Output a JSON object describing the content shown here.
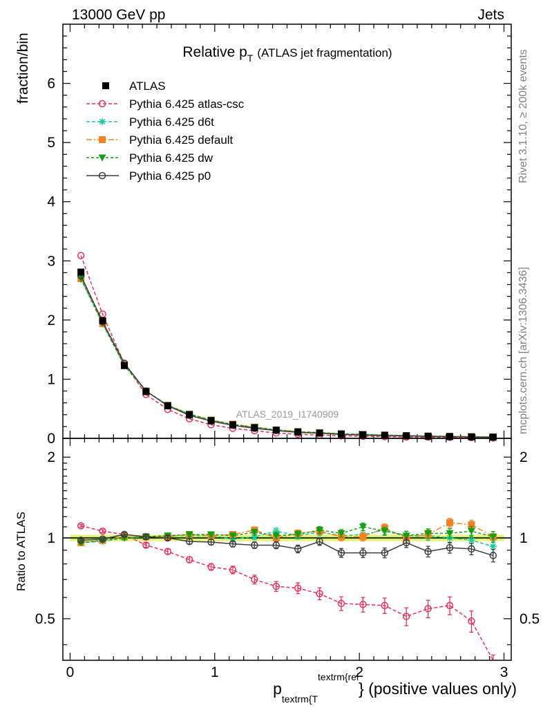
{
  "header": {
    "left_label": "13000 GeV pp",
    "right_label": "Jets"
  },
  "side_labels": {
    "rivet": "Rivet 3.1.10, ≥ 200k events",
    "mcplots": "mcplots.cern.ch [arXiv:1306.3436]"
  },
  "watermark": "ATLAS_2019_I1740909",
  "colors": {
    "ATLAS": "#000000",
    "Pythia 6.425 atlas-csc": "#e8305a",
    "Pythia 6.425 d6t": "#14c8a0",
    "Pythia 6.425 default": "#f58220",
    "Pythia 6.425 dw": "#10a010",
    "Pythia 6.425 p0": "#3c3c3c",
    "band_outer": "#f0f080",
    "band_inner": "#b8f070"
  },
  "chart_data": [
    {
      "type": "line",
      "panel": "main",
      "title": "Relative p",
      "title_sub": "T",
      "title_suffix": "(ATLAS jet fragmentation)",
      "ylabel": "fraction/bin",
      "xlim": [
        -0.05,
        3.05
      ],
      "ylim": [
        0,
        7.0
      ],
      "ytick_labels": [
        "0",
        "1",
        "2",
        "3",
        "4",
        "5",
        "6"
      ],
      "legend_position": "top-left",
      "x": [
        0.075,
        0.225,
        0.375,
        0.525,
        0.675,
        0.825,
        0.975,
        1.125,
        1.275,
        1.425,
        1.575,
        1.725,
        1.875,
        2.025,
        2.175,
        2.325,
        2.475,
        2.625,
        2.775,
        2.925
      ],
      "series": [
        {
          "name": "ATLAS",
          "marker": "square-filled",
          "values": [
            2.81,
            1.99,
            1.23,
            0.79,
            0.55,
            0.4,
            0.3,
            0.23,
            0.18,
            0.14,
            0.11,
            0.09,
            0.075,
            0.062,
            0.052,
            0.044,
            0.037,
            0.031,
            0.026,
            0.022
          ]
        },
        {
          "name": "Pythia 6.425 atlas-csc",
          "marker": "circle-open",
          "dash": "5,3",
          "values": [
            3.09,
            2.1,
            1.26,
            0.74,
            0.49,
            0.33,
            0.23,
            0.17,
            0.13,
            0.09,
            0.07,
            0.056,
            0.043,
            0.035,
            0.029,
            0.022,
            0.02,
            0.017,
            0.013,
            0.007
          ]
        },
        {
          "name": "Pythia 6.425 d6t",
          "marker": "asterisk",
          "dash": "5,3",
          "values": [
            2.69,
            1.93,
            1.23,
            0.8,
            0.56,
            0.41,
            0.31,
            0.23,
            0.185,
            0.145,
            0.113,
            0.095,
            0.076,
            0.064,
            0.055,
            0.045,
            0.038,
            0.031,
            0.026,
            0.02
          ]
        },
        {
          "name": "Pythia 6.425 default",
          "marker": "square-filled",
          "dash": "8,3,2,3",
          "values": [
            2.7,
            1.94,
            1.24,
            0.8,
            0.56,
            0.41,
            0.31,
            0.24,
            0.19,
            0.14,
            0.114,
            0.096,
            0.076,
            0.063,
            0.057,
            0.044,
            0.038,
            0.035,
            0.029,
            0.022
          ]
        },
        {
          "name": "Pythia 6.425 dw",
          "marker": "triangle-down-filled",
          "dash": "4,3",
          "values": [
            2.7,
            1.95,
            1.23,
            0.8,
            0.56,
            0.41,
            0.31,
            0.235,
            0.19,
            0.144,
            0.113,
            0.096,
            0.078,
            0.068,
            0.055,
            0.045,
            0.038,
            0.032,
            0.027,
            0.022
          ]
        },
        {
          "name": "Pythia 6.425 p0",
          "marker": "circle-open",
          "dash": "",
          "values": [
            2.75,
            1.97,
            1.27,
            0.8,
            0.55,
            0.39,
            0.29,
            0.22,
            0.17,
            0.132,
            0.101,
            0.087,
            0.066,
            0.055,
            0.046,
            0.042,
            0.033,
            0.029,
            0.024,
            0.019
          ]
        }
      ]
    },
    {
      "type": "line",
      "panel": "ratio",
      "ylabel": "Ratio to ATLAS",
      "xlabel_main": "p",
      "xlabel_sub": "textrm{T",
      "xlabel_sup": "textrm{rel",
      "xlabel_suffix": "} (positive values only)",
      "xlim": [
        -0.05,
        3.05
      ],
      "ylim": [
        0.35,
        2.35
      ],
      "xtick_labels": [
        "0",
        "1",
        "2",
        "3"
      ],
      "ytick_labels": [
        "0.5",
        "1",
        "2"
      ],
      "ytick_values": [
        0.5,
        1,
        2
      ],
      "x": [
        0.075,
        0.225,
        0.375,
        0.525,
        0.675,
        0.825,
        0.975,
        1.125,
        1.275,
        1.425,
        1.575,
        1.725,
        1.875,
        2.025,
        2.175,
        2.325,
        2.475,
        2.625,
        2.775,
        2.925
      ],
      "band_outer_halfwidth": 0.028,
      "band_inner_halfwidth": 0.012,
      "series": [
        {
          "name": "Pythia 6.425 atlas-csc",
          "marker": "circle-open",
          "dash": "5,3",
          "values": [
            1.11,
            1.06,
            1.03,
            0.94,
            0.89,
            0.83,
            0.78,
            0.76,
            0.7,
            0.66,
            0.65,
            0.62,
            0.57,
            0.565,
            0.56,
            0.51,
            0.545,
            0.56,
            0.49,
            0.32
          ]
        },
        {
          "name": "Pythia 6.425 d6t",
          "marker": "asterisk",
          "dash": "5,3",
          "values": [
            0.96,
            0.97,
            1.0,
            1.01,
            1.02,
            1.02,
            1.02,
            0.99,
            1.01,
            1.06,
            1.02,
            1.05,
            1.02,
            1.03,
            1.07,
            1.02,
            1.02,
            1.0,
            0.98,
            0.93
          ]
        },
        {
          "name": "Pythia 6.425 default",
          "marker": "square-filled",
          "dash": "8,3,2,3",
          "values": [
            0.96,
            0.98,
            1.01,
            1.01,
            1.01,
            1.03,
            1.02,
            1.03,
            1.07,
            1.0,
            1.04,
            1.06,
            1.01,
            1.01,
            1.09,
            1.0,
            1.03,
            1.14,
            1.12,
            1.01
          ]
        },
        {
          "name": "Pythia 6.425 dw",
          "marker": "triangle-down-filled",
          "dash": "4,3",
          "values": [
            0.96,
            0.98,
            1.0,
            1.01,
            1.02,
            1.03,
            1.03,
            1.02,
            1.05,
            1.02,
            1.03,
            1.07,
            1.04,
            1.1,
            1.06,
            1.02,
            1.04,
            1.04,
            1.06,
            1.01
          ]
        },
        {
          "name": "Pythia 6.425 p0",
          "marker": "circle-open",
          "dash": "",
          "values": [
            0.98,
            0.99,
            1.03,
            1.01,
            1.0,
            0.97,
            0.965,
            0.95,
            0.94,
            0.94,
            0.91,
            0.97,
            0.88,
            0.88,
            0.88,
            0.96,
            0.89,
            0.92,
            0.91,
            0.86
          ]
        }
      ]
    }
  ]
}
